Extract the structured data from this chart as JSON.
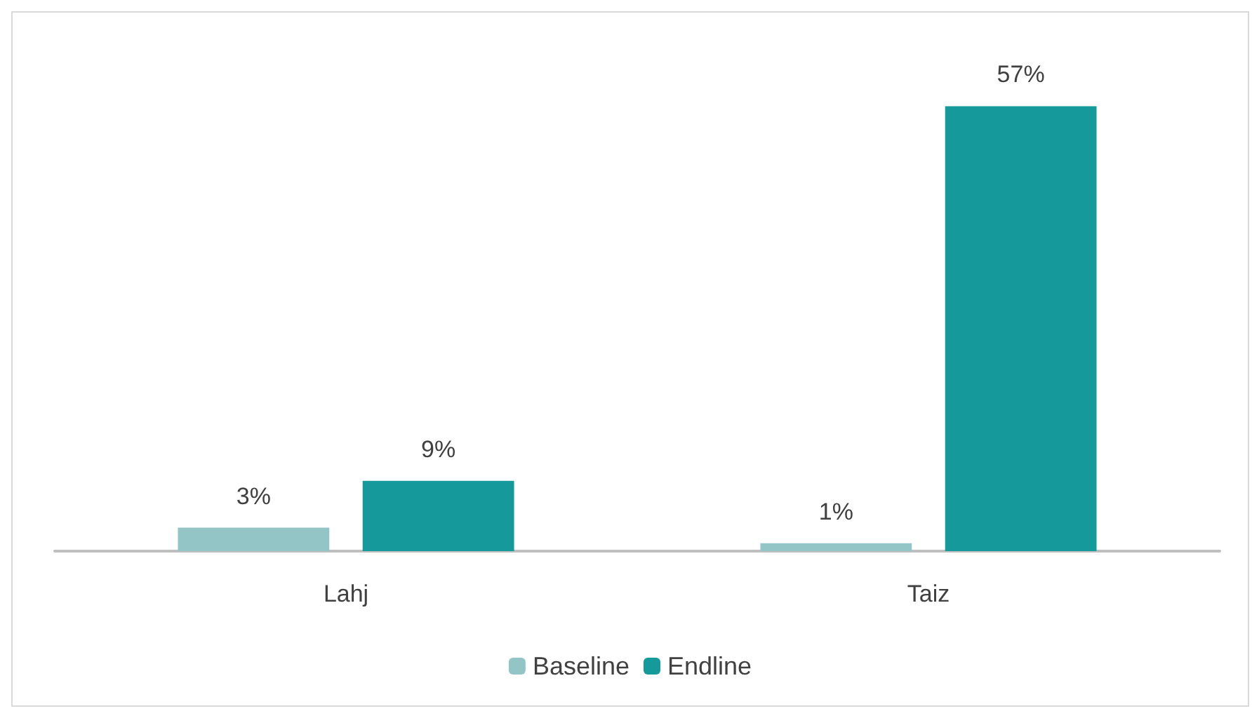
{
  "chart_data": {
    "type": "bar",
    "categories": [
      "Lahj",
      "Taiz"
    ],
    "series": [
      {
        "name": "Baseline",
        "color": "#93c5c7",
        "values": [
          3,
          1
        ],
        "value_labels": [
          "3%",
          "1%"
        ]
      },
      {
        "name": "Endline",
        "color": "#16999a",
        "values": [
          9,
          57
        ],
        "value_labels": [
          "9%",
          "57%"
        ]
      }
    ],
    "legend": "bottom"
  }
}
